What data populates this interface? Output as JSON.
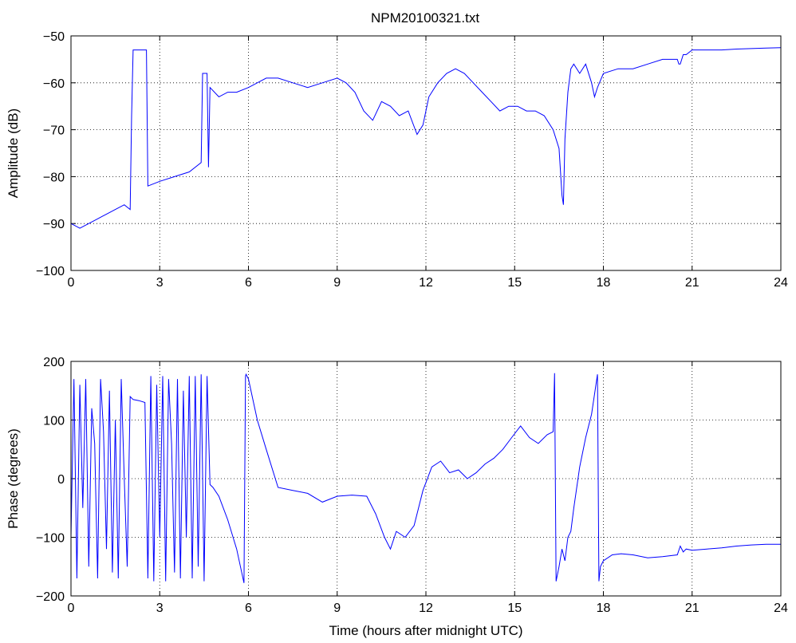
{
  "figure": {
    "title": "NPM20100321.txt",
    "xlabel": "Time (hours after midnight UTC)"
  },
  "chart_data": [
    {
      "type": "line",
      "title": "NPM20100321.txt",
      "xlabel": "",
      "ylabel": "Amplitude (dB)",
      "xlim": [
        0,
        24
      ],
      "ylim": [
        -100,
        -50
      ],
      "xticks": [
        0,
        3,
        6,
        9,
        12,
        15,
        18,
        21,
        24
      ],
      "yticks": [
        -100,
        -90,
        -80,
        -70,
        -60,
        -50
      ],
      "grid": true,
      "line_color": "#0000ff",
      "series": [
        {
          "x": [
            0,
            0.3,
            0.6,
            0.9,
            1.2,
            1.5,
            1.8,
            2.0,
            2.05,
            2.1,
            2.5,
            2.55,
            2.6,
            3.0,
            3.5,
            4.0,
            4.4,
            4.45,
            4.6,
            4.65,
            4.7,
            5.0,
            5.3,
            5.6,
            6.0,
            6.3,
            6.6,
            7.0,
            7.5,
            8.0,
            8.5,
            9.0,
            9.3,
            9.6,
            9.9,
            10.2,
            10.5,
            10.8,
            11.1,
            11.4,
            11.7,
            11.9,
            12.1,
            12.4,
            12.7,
            13.0,
            13.3,
            13.6,
            13.9,
            14.2,
            14.5,
            14.8,
            15.1,
            15.4,
            15.7,
            16.0,
            16.3,
            16.5,
            16.6,
            16.65,
            16.7,
            16.8,
            16.9,
            17.0,
            17.2,
            17.4,
            17.6,
            17.7,
            17.8,
            18.0,
            18.5,
            19.0,
            19.5,
            20.0,
            20.5,
            20.55,
            20.6,
            20.7,
            20.8,
            21.0,
            21.5,
            22.0,
            22.5,
            23.0,
            23.5,
            24.0
          ],
          "y": [
            -90,
            -91,
            -90,
            -89,
            -88,
            -87,
            -86,
            -87,
            -67,
            -53,
            -53,
            -53,
            -82,
            -81,
            -80,
            -79,
            -77,
            -58,
            -58,
            -78,
            -61,
            -63,
            -62,
            -62,
            -61,
            -60,
            -59,
            -59,
            -60,
            -61,
            -60,
            -59,
            -60,
            -62,
            -66,
            -68,
            -64,
            -65,
            -67,
            -66,
            -71,
            -69,
            -63,
            -60,
            -58,
            -57,
            -58,
            -60,
            -62,
            -64,
            -66,
            -65,
            -65,
            -66,
            -66,
            -67,
            -70,
            -74,
            -84,
            -86,
            -72,
            -62,
            -57,
            -56,
            -58,
            -56,
            -60,
            -63,
            -61,
            -58,
            -57,
            -57,
            -56,
            -55,
            -55,
            -56,
            -56,
            -54,
            -54,
            -53,
            -53,
            -53,
            -52.8,
            -52.7,
            -52.6,
            -52.5
          ]
        }
      ]
    },
    {
      "type": "line",
      "title": "",
      "xlabel": "Time (hours after midnight UTC)",
      "ylabel": "Phase (degrees)",
      "xlim": [
        0,
        24
      ],
      "ylim": [
        -200,
        200
      ],
      "xticks": [
        0,
        3,
        6,
        9,
        12,
        15,
        18,
        21,
        24
      ],
      "yticks": [
        -200,
        -100,
        0,
        100,
        200
      ],
      "grid": true,
      "line_color": "#0000ff",
      "series": [
        {
          "x": [
            0,
            0.1,
            0.2,
            0.3,
            0.4,
            0.5,
            0.6,
            0.7,
            0.8,
            0.9,
            1.0,
            1.1,
            1.2,
            1.3,
            1.4,
            1.5,
            1.6,
            1.7,
            1.8,
            1.9,
            2.0,
            2.1,
            2.3,
            2.5,
            2.6,
            2.7,
            2.8,
            2.9,
            3.0,
            3.1,
            3.2,
            3.3,
            3.4,
            3.5,
            3.6,
            3.7,
            3.8,
            3.9,
            4.0,
            4.1,
            4.2,
            4.3,
            4.4,
            4.5,
            4.6,
            4.7,
            4.8,
            5.0,
            5.3,
            5.6,
            5.85,
            5.9,
            5.92,
            6.0,
            6.3,
            6.6,
            7.0,
            7.5,
            8.0,
            8.5,
            9.0,
            9.5,
            10.0,
            10.3,
            10.6,
            10.8,
            11.0,
            11.3,
            11.6,
            11.9,
            12.2,
            12.5,
            12.8,
            13.1,
            13.4,
            13.7,
            14.0,
            14.3,
            14.6,
            14.9,
            15.2,
            15.5,
            15.8,
            16.1,
            16.3,
            16.35,
            16.4,
            16.5,
            16.6,
            16.7,
            16.8,
            16.9,
            17.0,
            17.2,
            17.4,
            17.6,
            17.8,
            17.85,
            17.9,
            18.0,
            18.3,
            18.6,
            19.0,
            19.5,
            20.0,
            20.5,
            20.6,
            20.7,
            20.8,
            21.0,
            21.5,
            22.0,
            22.5,
            23.0,
            23.5,
            24.0
          ],
          "y": [
            -100,
            170,
            -170,
            160,
            -50,
            170,
            -150,
            120,
            60,
            -170,
            170,
            80,
            -120,
            150,
            -160,
            100,
            -170,
            170,
            0,
            -150,
            140,
            135,
            133,
            130,
            -170,
            175,
            -175,
            160,
            -100,
            175,
            -175,
            170,
            60,
            -160,
            170,
            -170,
            150,
            -100,
            175,
            -170,
            175,
            -150,
            178,
            -175,
            175,
            -10,
            -15,
            -30,
            -70,
            -120,
            -178,
            175,
            178,
            170,
            100,
            50,
            -15,
            -20,
            -25,
            -40,
            -30,
            -28,
            -30,
            -60,
            -100,
            -120,
            -90,
            -100,
            -80,
            -20,
            20,
            30,
            10,
            15,
            0,
            10,
            25,
            35,
            50,
            70,
            90,
            70,
            60,
            75,
            80,
            180,
            -175,
            -150,
            -120,
            -140,
            -100,
            -90,
            -50,
            20,
            70,
            110,
            178,
            -175,
            -150,
            -140,
            -130,
            -128,
            -130,
            -135,
            -133,
            -130,
            -115,
            -125,
            -120,
            -122,
            -120,
            -118,
            -115,
            -113,
            -112,
            -112
          ]
        }
      ]
    }
  ]
}
